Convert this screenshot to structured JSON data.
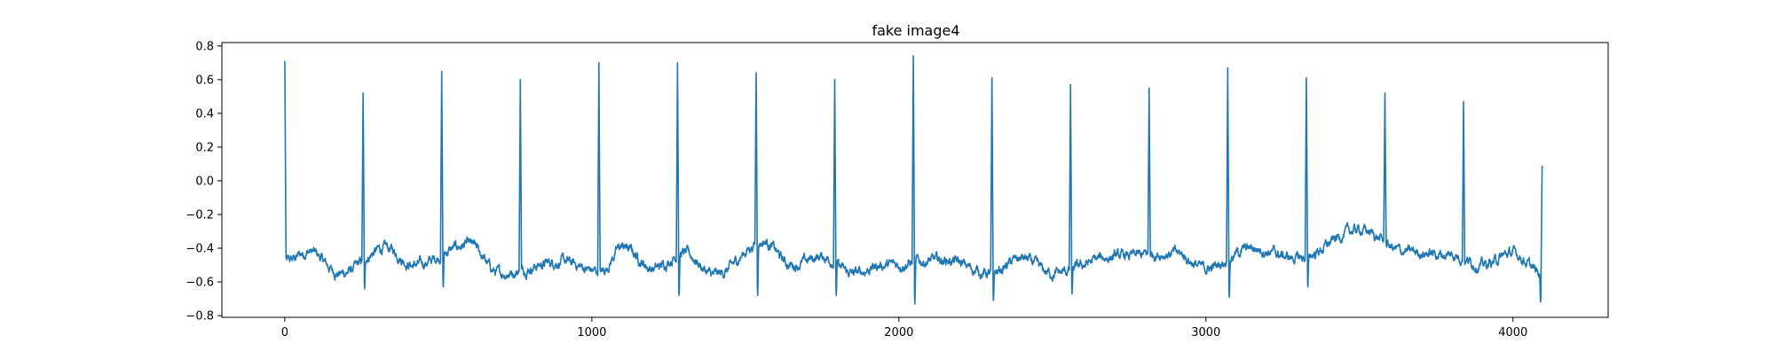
{
  "chart_data": {
    "type": "line",
    "title": "fake image4",
    "xlabel": "",
    "ylabel": "",
    "xlim": [
      -205,
      4310
    ],
    "ylim": [
      -0.81,
      0.82
    ],
    "x_ticks": [
      0,
      1000,
      2000,
      3000,
      4000
    ],
    "x_tick_labels": [
      "0",
      "1000",
      "2000",
      "3000",
      "4000"
    ],
    "y_ticks": [
      -0.8,
      -0.6,
      -0.4,
      -0.2,
      0.0,
      0.2,
      0.4,
      0.6,
      0.8
    ],
    "y_tick_labels": [
      "−0.8",
      "−0.6",
      "−0.4",
      "−0.2",
      "0.0",
      "0.2",
      "0.4",
      "0.6",
      "0.8"
    ],
    "grid": false,
    "legend": "none",
    "series": [
      {
        "color": "#1f77b4",
        "x_start": 0,
        "x_end": 4095,
        "num_points": 4096,
        "baseline": -0.49,
        "beat_period": 256,
        "peaks": [
          {
            "x": 0,
            "y": 0.71
          },
          {
            "x": 255,
            "y": 0.52
          },
          {
            "x": 511,
            "y": 0.65
          },
          {
            "x": 767,
            "y": 0.6
          },
          {
            "x": 1023,
            "y": 0.7
          },
          {
            "x": 1279,
            "y": 0.7
          },
          {
            "x": 1535,
            "y": 0.64
          },
          {
            "x": 1791,
            "y": 0.6
          },
          {
            "x": 2047,
            "y": 0.74
          },
          {
            "x": 2303,
            "y": 0.61
          },
          {
            "x": 2559,
            "y": 0.57
          },
          {
            "x": 2815,
            "y": 0.55
          },
          {
            "x": 3071,
            "y": 0.67
          },
          {
            "x": 3327,
            "y": 0.61
          },
          {
            "x": 3583,
            "y": 0.52
          },
          {
            "x": 3839,
            "y": 0.47
          },
          {
            "x": 4095,
            "y": 0.09
          }
        ],
        "troughs": [
          {
            "x": 260,
            "y": -0.64
          },
          {
            "x": 516,
            "y": -0.63
          },
          {
            "x": 1284,
            "y": -0.68
          },
          {
            "x": 1540,
            "y": -0.68
          },
          {
            "x": 1796,
            "y": -0.68
          },
          {
            "x": 2052,
            "y": -0.73
          },
          {
            "x": 2308,
            "y": -0.71
          },
          {
            "x": 2564,
            "y": -0.67
          },
          {
            "x": 3076,
            "y": -0.69
          },
          {
            "x": 3332,
            "y": -0.63
          },
          {
            "x": 4090,
            "y": -0.72
          }
        ],
        "wander": [
          {
            "x": 0,
            "y": -0.48
          },
          {
            "x": 80,
            "y": -0.42
          },
          {
            "x": 180,
            "y": -0.55
          },
          {
            "x": 330,
            "y": -0.4
          },
          {
            "x": 420,
            "y": -0.5
          },
          {
            "x": 600,
            "y": -0.38
          },
          {
            "x": 700,
            "y": -0.55
          },
          {
            "x": 900,
            "y": -0.48
          },
          {
            "x": 1030,
            "y": -0.54
          },
          {
            "x": 1100,
            "y": -0.39
          },
          {
            "x": 1200,
            "y": -0.52
          },
          {
            "x": 1300,
            "y": -0.43
          },
          {
            "x": 1400,
            "y": -0.56
          },
          {
            "x": 1560,
            "y": -0.36
          },
          {
            "x": 1650,
            "y": -0.5
          },
          {
            "x": 1750,
            "y": -0.45
          },
          {
            "x": 1850,
            "y": -0.55
          },
          {
            "x": 1950,
            "y": -0.5
          },
          {
            "x": 2150,
            "y": -0.47
          },
          {
            "x": 2300,
            "y": -0.55
          },
          {
            "x": 2400,
            "y": -0.46
          },
          {
            "x": 2500,
            "y": -0.55
          },
          {
            "x": 2700,
            "y": -0.45
          },
          {
            "x": 2900,
            "y": -0.43
          },
          {
            "x": 3000,
            "y": -0.52
          },
          {
            "x": 3150,
            "y": -0.4
          },
          {
            "x": 3300,
            "y": -0.46
          },
          {
            "x": 3500,
            "y": -0.29
          },
          {
            "x": 3650,
            "y": -0.42
          },
          {
            "x": 3800,
            "y": -0.44
          },
          {
            "x": 3900,
            "y": -0.5
          },
          {
            "x": 4000,
            "y": -0.43
          },
          {
            "x": 4095,
            "y": -0.55
          }
        ]
      }
    ]
  }
}
